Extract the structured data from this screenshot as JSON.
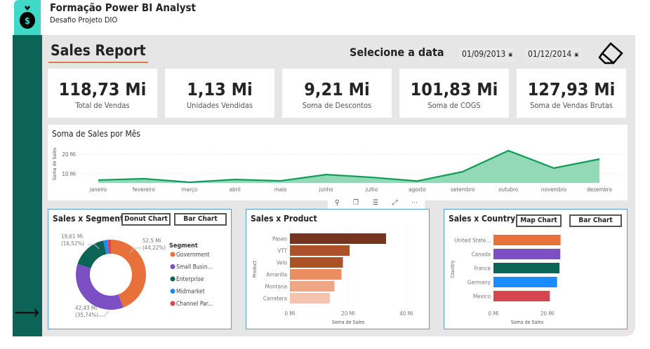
{
  "header": {
    "title": "Formação Power BI Analyst",
    "subtitle": "Desafio Projeto DIO",
    "logo_icon": "money-bag-icon"
  },
  "report": {
    "title": "Sales Report",
    "date_label": "Selecione a data",
    "date_start": "01/09/2013",
    "date_end": "01/12/2014",
    "eraser_icon": "eraser-icon",
    "nav_icon": "arrow-right-icon"
  },
  "kpis": [
    {
      "value": "118,73 Mi",
      "label": "Total de Vendas"
    },
    {
      "value": "1,13 Mi",
      "label": "Unidades Vendidas"
    },
    {
      "value": "9,21 Mi",
      "label": "Soma de Descontos"
    },
    {
      "value": "101,83 Mi",
      "label": "Soma de COGS"
    },
    {
      "value": "127,93 Mi",
      "label": "Soma de Vendas Brutas"
    }
  ],
  "visual_toolbar": [
    "pin-icon",
    "copy-icon",
    "filter-icon",
    "focus-icon",
    "more-icon"
  ],
  "chart_data": [
    {
      "type": "area",
      "title": "Soma de Sales por Mês",
      "ylabel": "Soma de Sales",
      "yticks": [
        "10 Mi",
        "20 Mi"
      ],
      "ylim": [
        5,
        25
      ],
      "grid": true,
      "color": "#0f9b58",
      "fill": "#93d9b8",
      "categories": [
        "janeiro",
        "fevereiro",
        "março",
        "abril",
        "maio",
        "junho",
        "julho",
        "agosto",
        "setembro",
        "outubro",
        "novembro",
        "dezembro"
      ],
      "values": [
        6.8,
        7.5,
        5.7,
        7.1,
        6.4,
        9.6,
        8.2,
        6.3,
        11.1,
        21.8,
        12.9,
        17.5
      ]
    },
    {
      "type": "pie",
      "title": "Sales x Segment",
      "legend_title": "Segment",
      "legend": "right",
      "buttons": [
        "Donut Chart",
        "Bar Chart"
      ],
      "categories": [
        "Government",
        "Small Business",
        "Enterprise",
        "Midmarket",
        "Channel Partners"
      ],
      "legend_labels": [
        "Government",
        "Small Busin...",
        "Enterprise",
        "Midmarket",
        "Channel Par..."
      ],
      "values": [
        52.5,
        42.43,
        19.61,
        2.38,
        1.81
      ],
      "labels": [
        {
          "value": "52,5 Mi",
          "pct": "(44,22%)"
        },
        {
          "value": "42,43 Mi",
          "pct": "(35,74%)"
        },
        {
          "value": "19,61 Mi",
          "pct": "(16,52%)"
        }
      ],
      "colors": [
        "#e8703a",
        "#7c4fc4",
        "#0c6457",
        "#1a8cff",
        "#d64550"
      ]
    },
    {
      "type": "bar",
      "title": "Sales x Product",
      "ylabel": "Product",
      "xlabel": "Soma de Sales",
      "xticks": [
        "0 Mi",
        "20 Mi",
        "40 Mi"
      ],
      "xlim": [
        0,
        40
      ],
      "categories": [
        "Paseo",
        "VTT",
        "Velo",
        "Amarilla",
        "Montana",
        "Carretera"
      ],
      "values": [
        33.0,
        20.5,
        18.2,
        17.7,
        15.3,
        13.7
      ],
      "colors": [
        "#74341e",
        "#ad5129",
        "#ad5129",
        "#ec8c61",
        "#f0a684",
        "#f4c4ae"
      ]
    },
    {
      "type": "bar",
      "title": "Sales x Country",
      "ylabel": "Country",
      "xlabel": "Soma de Sales",
      "xticks": [
        "0 Mi",
        "20 Mi"
      ],
      "xlim": [
        0,
        25
      ],
      "buttons": [
        "Map Chart",
        "Bar Chart"
      ],
      "categories": [
        "United State...",
        "Canada",
        "France",
        "Germany",
        "Mexico"
      ],
      "values": [
        24.9,
        24.8,
        24.5,
        23.6,
        20.9
      ],
      "colors": [
        "#e8703a",
        "#7c4fc4",
        "#0c6457",
        "#1a8cff",
        "#d64550"
      ]
    }
  ]
}
